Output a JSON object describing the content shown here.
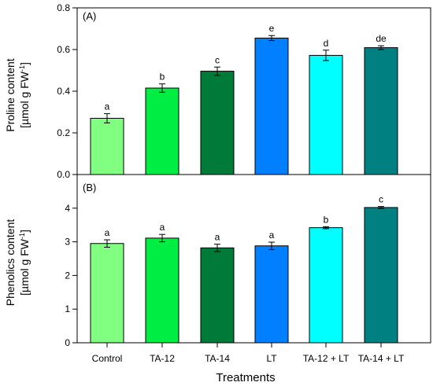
{
  "chart_data": [
    {
      "type": "bar",
      "panel_label": "(A)",
      "ylabel_line1": "Proline content",
      "ylabel_line2": "[µmol g FW",
      "ylabel_sup": "-1",
      "ylabel_end": "]",
      "ylim": [
        0,
        0.8
      ],
      "yticks": [
        "0.0",
        "0.2",
        "0.4",
        "0.6",
        "0.8"
      ],
      "categories": [
        "Control",
        "TA-12",
        "TA-14",
        "LT",
        "TA-12 + LT",
        "TA-14 + LT"
      ],
      "values": [
        0.27,
        0.415,
        0.496,
        0.655,
        0.572,
        0.609
      ],
      "errors": [
        0.022,
        0.02,
        0.02,
        0.012,
        0.025,
        0.009
      ],
      "letters": [
        "a",
        "b",
        "c",
        "e",
        "d",
        "de"
      ],
      "colors": [
        "#80ff80",
        "#00ee44",
        "#007a38",
        "#0080ff",
        "#00ffff",
        "#008080"
      ]
    },
    {
      "type": "bar",
      "panel_label": "(B)",
      "ylabel_line1": "Phenolics content",
      "ylabel_line2": "[µmol g FW",
      "ylabel_sup": "-1",
      "ylabel_end": "]",
      "ylim": [
        0,
        5
      ],
      "yticks": [
        "0",
        "1",
        "2",
        "3",
        "4"
      ],
      "categories": [
        "Control",
        "TA-12",
        "TA-14",
        "LT",
        "TA-12 + LT",
        "TA-14 + LT"
      ],
      "values": [
        2.95,
        3.11,
        2.82,
        2.88,
        3.42,
        4.02
      ],
      "errors": [
        0.11,
        0.11,
        0.11,
        0.11,
        0.03,
        0.03
      ],
      "letters": [
        "a",
        "a",
        "a",
        "a",
        "b",
        "c"
      ],
      "colors": [
        "#80ff80",
        "#00ee44",
        "#007a38",
        "#0080ff",
        "#00ffff",
        "#008080"
      ]
    }
  ],
  "xlabel": "Treatments"
}
